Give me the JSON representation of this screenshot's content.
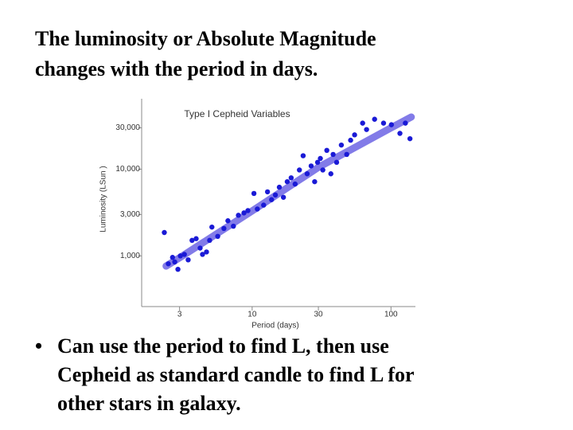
{
  "slide": {
    "title": [
      "The luminosity or Absolute Magnitude",
      "changes with the period in days."
    ],
    "bullet": [
      "Can use the period to find L, then use",
      "Cepheid as standard candle to find L for",
      "other stars in galaxy."
    ]
  },
  "chart_data": {
    "type": "scatter",
    "title": "Type I Cepheid Variables",
    "xlabel": "Period (days)",
    "ylabel": "Luminosity (LSun )",
    "xscale": "log",
    "yscale": "log",
    "xlim": [
      1.6,
      150
    ],
    "ylim": [
      260,
      65000
    ],
    "xticks": [
      3,
      10,
      30,
      100
    ],
    "yticks": [
      {
        "value": 1000,
        "label": "1,000"
      },
      {
        "value": 3000,
        "label": "3,000"
      },
      {
        "value": 10000,
        "label": "10,000"
      },
      {
        "value": 30000,
        "label": "30,000"
      }
    ],
    "series": [
      {
        "type": "line",
        "color": "#6c64e4",
        "x": [
          2.4,
          3,
          10,
          30,
          100,
          140
        ],
        "values": [
          763,
          950,
          3300,
          10500,
          30000,
          40000
        ]
      },
      {
        "type": "scatter",
        "color": "#1a1ad6",
        "x": [
          2.33,
          2.49,
          2.67,
          2.77,
          2.92,
          3.04,
          3.25,
          3.46,
          3.69,
          3.95,
          4.22,
          4.39,
          4.69,
          4.94,
          5.13,
          5.65,
          6.26,
          6.69,
          7.33,
          7.96,
          8.73,
          9.32,
          10.3,
          10.9,
          12.1,
          12.9,
          13.8,
          14.7,
          15.7,
          16.8,
          17.9,
          19.1,
          20.4,
          21.9,
          23.3,
          24.9,
          26.6,
          28.2,
          29.6,
          31.0,
          32.3,
          34.5,
          36.9,
          38.3,
          40.6,
          43.9,
          48.0,
          51.2,
          54.7,
          62.5,
          66.7,
          76.2,
          88.4,
          100.7,
          116,
          127,
          137
        ],
        "values": [
          1860,
          810,
          960,
          850,
          700,
          1000,
          1040,
          900,
          1510,
          1580,
          1230,
          1040,
          1110,
          1510,
          2150,
          1680,
          2070,
          2540,
          2200,
          2940,
          3130,
          3330,
          5250,
          3470,
          3850,
          5480,
          4450,
          5040,
          6200,
          4740,
          7180,
          7950,
          6740,
          9790,
          14300,
          8850,
          10900,
          7180,
          12000,
          13300,
          9790,
          16500,
          8850,
          14800,
          12000,
          19000,
          14800,
          21600,
          24900,
          34000,
          28700,
          37700,
          34000,
          32600,
          25900,
          34000,
          22500
        ]
      }
    ]
  }
}
